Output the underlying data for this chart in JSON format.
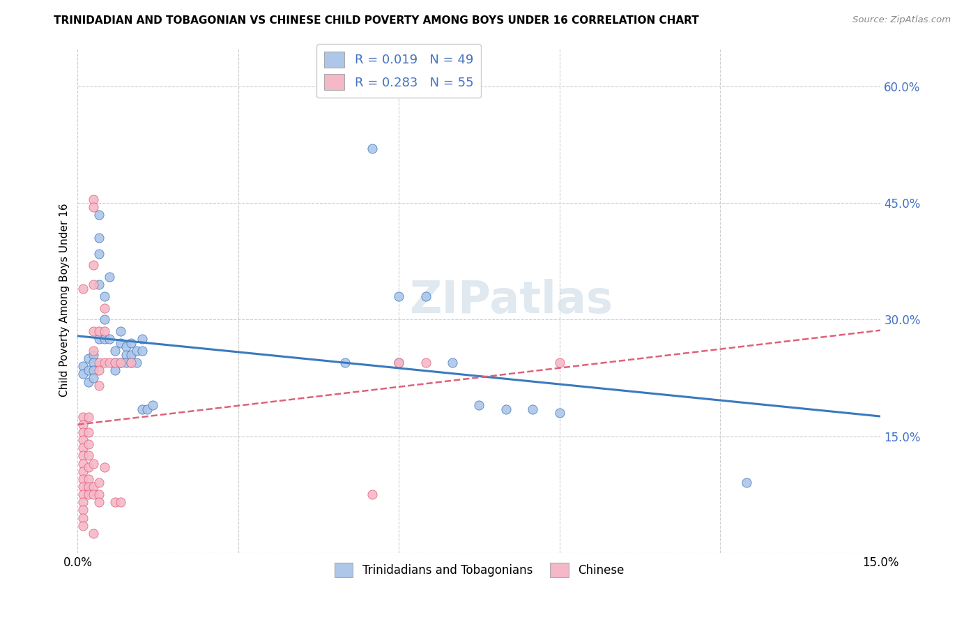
{
  "title": "TRINIDADIAN AND TOBAGONIAN VS CHINESE CHILD POVERTY AMONG BOYS UNDER 16 CORRELATION CHART",
  "source": "Source: ZipAtlas.com",
  "ylabel": "Child Poverty Among Boys Under 16",
  "xlim": [
    0.0,
    0.15
  ],
  "ylim": [
    0.0,
    0.65
  ],
  "watermark": "ZIPatlas",
  "blue_R": "0.019",
  "blue_N": "49",
  "pink_R": "0.283",
  "pink_N": "55",
  "blue_color": "#aec6e8",
  "pink_color": "#f5b8c8",
  "blue_line_color": "#3a7abf",
  "pink_line_color": "#e0607a",
  "pink_line_style": "--",
  "legend_label_blue": "Trinidadians and Tobagonians",
  "legend_label_pink": "Chinese",
  "blue_scatter": [
    [
      0.001,
      0.24
    ],
    [
      0.001,
      0.23
    ],
    [
      0.002,
      0.25
    ],
    [
      0.002,
      0.235
    ],
    [
      0.002,
      0.22
    ],
    [
      0.003,
      0.255
    ],
    [
      0.003,
      0.245
    ],
    [
      0.003,
      0.235
    ],
    [
      0.003,
      0.225
    ],
    [
      0.004,
      0.435
    ],
    [
      0.004,
      0.405
    ],
    [
      0.004,
      0.385
    ],
    [
      0.004,
      0.345
    ],
    [
      0.004,
      0.275
    ],
    [
      0.005,
      0.33
    ],
    [
      0.005,
      0.3
    ],
    [
      0.005,
      0.275
    ],
    [
      0.006,
      0.355
    ],
    [
      0.006,
      0.275
    ],
    [
      0.007,
      0.26
    ],
    [
      0.007,
      0.245
    ],
    [
      0.007,
      0.235
    ],
    [
      0.008,
      0.285
    ],
    [
      0.008,
      0.27
    ],
    [
      0.008,
      0.245
    ],
    [
      0.009,
      0.265
    ],
    [
      0.009,
      0.255
    ],
    [
      0.009,
      0.245
    ],
    [
      0.01,
      0.27
    ],
    [
      0.01,
      0.255
    ],
    [
      0.01,
      0.245
    ],
    [
      0.011,
      0.26
    ],
    [
      0.011,
      0.245
    ],
    [
      0.012,
      0.275
    ],
    [
      0.012,
      0.26
    ],
    [
      0.012,
      0.185
    ],
    [
      0.013,
      0.185
    ],
    [
      0.014,
      0.19
    ],
    [
      0.05,
      0.245
    ],
    [
      0.055,
      0.52
    ],
    [
      0.06,
      0.33
    ],
    [
      0.06,
      0.245
    ],
    [
      0.065,
      0.33
    ],
    [
      0.07,
      0.245
    ],
    [
      0.075,
      0.19
    ],
    [
      0.08,
      0.185
    ],
    [
      0.085,
      0.185
    ],
    [
      0.09,
      0.18
    ],
    [
      0.125,
      0.09
    ]
  ],
  "pink_scatter": [
    [
      0.001,
      0.34
    ],
    [
      0.001,
      0.175
    ],
    [
      0.001,
      0.165
    ],
    [
      0.001,
      0.155
    ],
    [
      0.001,
      0.145
    ],
    [
      0.001,
      0.135
    ],
    [
      0.001,
      0.125
    ],
    [
      0.001,
      0.115
    ],
    [
      0.001,
      0.105
    ],
    [
      0.001,
      0.095
    ],
    [
      0.001,
      0.085
    ],
    [
      0.001,
      0.075
    ],
    [
      0.001,
      0.065
    ],
    [
      0.001,
      0.055
    ],
    [
      0.001,
      0.045
    ],
    [
      0.001,
      0.035
    ],
    [
      0.002,
      0.175
    ],
    [
      0.002,
      0.155
    ],
    [
      0.002,
      0.14
    ],
    [
      0.002,
      0.125
    ],
    [
      0.002,
      0.11
    ],
    [
      0.002,
      0.095
    ],
    [
      0.002,
      0.085
    ],
    [
      0.002,
      0.075
    ],
    [
      0.003,
      0.455
    ],
    [
      0.003,
      0.445
    ],
    [
      0.003,
      0.37
    ],
    [
      0.003,
      0.345
    ],
    [
      0.003,
      0.285
    ],
    [
      0.003,
      0.26
    ],
    [
      0.003,
      0.115
    ],
    [
      0.003,
      0.085
    ],
    [
      0.003,
      0.075
    ],
    [
      0.003,
      0.025
    ],
    [
      0.004,
      0.285
    ],
    [
      0.004,
      0.245
    ],
    [
      0.004,
      0.235
    ],
    [
      0.004,
      0.215
    ],
    [
      0.004,
      0.09
    ],
    [
      0.004,
      0.075
    ],
    [
      0.004,
      0.065
    ],
    [
      0.005,
      0.315
    ],
    [
      0.005,
      0.285
    ],
    [
      0.005,
      0.245
    ],
    [
      0.005,
      0.11
    ],
    [
      0.006,
      0.245
    ],
    [
      0.007,
      0.245
    ],
    [
      0.007,
      0.065
    ],
    [
      0.008,
      0.245
    ],
    [
      0.008,
      0.065
    ],
    [
      0.01,
      0.245
    ],
    [
      0.055,
      0.075
    ],
    [
      0.06,
      0.245
    ],
    [
      0.065,
      0.245
    ],
    [
      0.09,
      0.245
    ]
  ]
}
